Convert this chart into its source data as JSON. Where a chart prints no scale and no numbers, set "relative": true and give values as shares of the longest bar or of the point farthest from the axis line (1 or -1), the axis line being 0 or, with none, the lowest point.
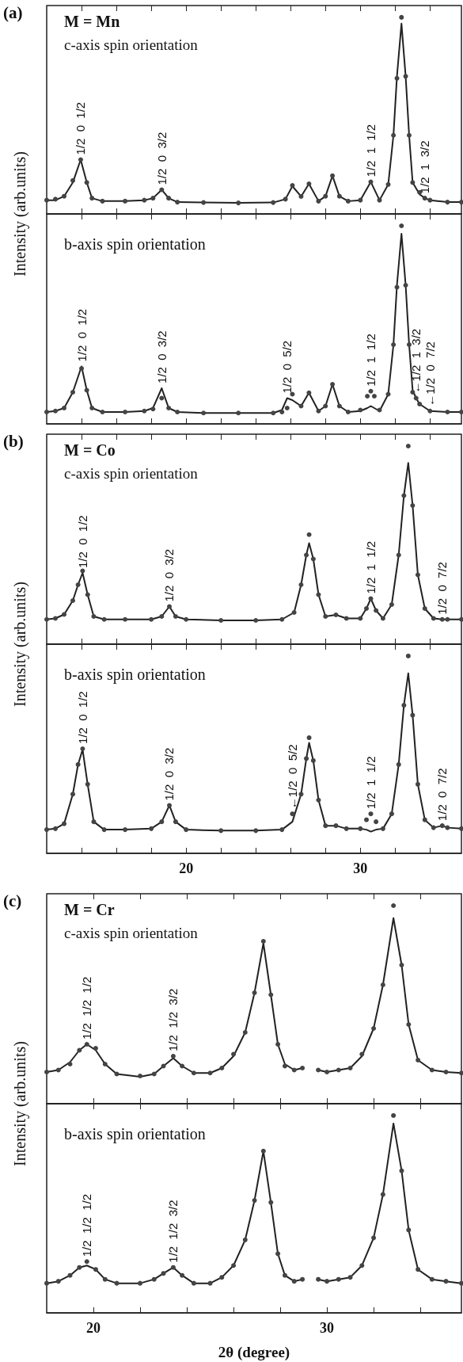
{
  "chart_data": [
    {
      "type": "line",
      "relative": true,
      "title": "M = Mn",
      "subtitle": "c-axis spin orientation",
      "ylabel": "Intensity (arb.units)",
      "line_style": "solid",
      "tick_labels": false,
      "xlim": [
        12,
        35.8
      ],
      "xticks": [
        {
          "value": 14,
          "label": null
        },
        {
          "value": 16,
          "label": null
        },
        {
          "value": 18,
          "label": null
        },
        {
          "value": 20,
          "label": null
        },
        {
          "value": 22,
          "label": null
        },
        {
          "value": 24,
          "label": null
        },
        {
          "value": 26,
          "label": null
        },
        {
          "value": 28,
          "label": null
        },
        {
          "value": 30,
          "label": null
        },
        {
          "value": 32,
          "label": null
        },
        {
          "value": 34,
          "label": null
        }
      ],
      "annotations": [
        "(a)",
        {
          "text": "1/2  0  1/2",
          "x": 13.95,
          "y": 0.276
        },
        {
          "text": "1/2  0  3/2",
          "x": 18.6,
          "y": 0.123
        },
        {
          "text": "1/2  1  1/2",
          "x": 30.6,
          "y": 0.163
        },
        {
          "text": "1/2  1  3/2",
          "x": 33.7,
          "y": 0.08
        }
      ],
      "x": [
        12,
        12.5,
        13,
        13.5,
        13.95,
        14.3,
        14.6,
        15.2,
        16.5,
        17.6,
        18.1,
        18.6,
        19,
        19.5,
        21,
        23,
        25,
        25.7,
        26.1,
        26.6,
        27.05,
        27.6,
        28,
        28.4,
        28.8,
        29.3,
        30,
        30.6,
        31.1,
        31.6,
        31.9,
        32.1,
        32.36,
        32.6,
        32.8,
        33,
        33.4,
        33.7,
        34,
        35,
        35.8
      ],
      "series": [
        {
          "marker": "none",
          "color": "#222222",
          "values": [
            0.07,
            0.07,
            0.09,
            0.16,
            0.276,
            0.16,
            0.08,
            0.065,
            0.065,
            0.07,
            0.08,
            0.123,
            0.08,
            0.06,
            0.058,
            0.056,
            0.058,
            0.075,
            0.141,
            0.089,
            0.153,
            0.065,
            0.09,
            0.194,
            0.09,
            0.065,
            0.07,
            0.163,
            0.07,
            0.15,
            0.4,
            0.7,
            0.968,
            0.7,
            0.4,
            0.16,
            0.1,
            0.08,
            0.07,
            0.06,
            0.06
          ]
        },
        {
          "type": "scatter",
          "marker": "circle",
          "color": "#444444",
          "values": [
            0.07,
            0.075,
            0.09,
            0.17,
            0.276,
            0.16,
            0.08,
            0.065,
            0.065,
            0.07,
            0.08,
            0.123,
            0.08,
            0.06,
            0.058,
            0.056,
            0.058,
            0.075,
            0.145,
            0.089,
            0.153,
            0.065,
            0.09,
            0.194,
            0.09,
            0.065,
            0.07,
            0.163,
            0.07,
            0.15,
            0.4,
            0.69,
            1.0,
            0.7,
            0.4,
            0.16,
            0.11,
            0.08,
            0.07,
            0.06,
            0.06
          ]
        }
      ]
    },
    {
      "type": "line",
      "relative": true,
      "title": "b-axis spin orientation",
      "line_style": "solid",
      "tick_labels": false,
      "xlim": [
        12,
        35.8
      ],
      "xticks": [
        {
          "value": 14,
          "label": null
        },
        {
          "value": 16,
          "label": null
        },
        {
          "value": 18,
          "label": null
        },
        {
          "value": 20,
          "label": null
        },
        {
          "value": 22,
          "label": null
        },
        {
          "value": 24,
          "label": null
        },
        {
          "value": 26,
          "label": null
        },
        {
          "value": 28,
          "label": null
        },
        {
          "value": 30,
          "label": null
        },
        {
          "value": 32,
          "label": null
        },
        {
          "value": 34,
          "label": null
        }
      ],
      "annotations": [
        {
          "text": "1/2  0  1/2",
          "x": 14,
          "y": 0.29
        },
        {
          "text": "1/2  0  3/2",
          "x": 18.6,
          "y": 0.18
        },
        {
          "text": "1/2  0  5/2",
          "x": 25.8,
          "y": 0.13
        },
        {
          "text": "1/2  1  1/2",
          "x": 30.6,
          "y": 0.165
        },
        {
          "text": "←1/2  1  3/2",
          "x": 33.2,
          "y": 0.13
        },
        {
          "text": "←1/2  0  7/2",
          "x": 34.0,
          "y": 0.065
        }
      ],
      "x": [
        12,
        12.5,
        13,
        13.5,
        14,
        14.3,
        14.6,
        15.2,
        16.5,
        17.6,
        18.1,
        18.6,
        19,
        19.5,
        21,
        23,
        25,
        25.5,
        25.8,
        26.1,
        26.6,
        27.05,
        27.6,
        28,
        28.4,
        28.8,
        29.3,
        30,
        30.4,
        30.6,
        30.8,
        31.1,
        31.6,
        31.9,
        32.1,
        32.36,
        32.6,
        32.8,
        33,
        33.2,
        33.4,
        34,
        35,
        35.8
      ],
      "series": [
        {
          "marker": "none",
          "color": "#222222",
          "values": [
            0.06,
            0.065,
            0.08,
            0.16,
            0.29,
            0.17,
            0.08,
            0.06,
            0.06,
            0.065,
            0.08,
            0.18,
            0.08,
            0.06,
            0.055,
            0.055,
            0.055,
            0.07,
            0.13,
            0.12,
            0.09,
            0.157,
            0.065,
            0.09,
            0.2,
            0.09,
            0.06,
            0.065,
            0.08,
            0.09,
            0.08,
            0.065,
            0.15,
            0.4,
            0.7,
            0.96,
            0.7,
            0.4,
            0.17,
            0.13,
            0.1,
            0.065,
            0.06,
            0.06
          ]
        },
        {
          "type": "scatter",
          "marker": "circle",
          "color": "#444444",
          "values": [
            0.06,
            0.065,
            0.08,
            0.16,
            0.28,
            0.17,
            0.08,
            0.06,
            0.06,
            0.065,
            0.075,
            0.13,
            0.08,
            0.06,
            0.055,
            0.055,
            0.055,
            0.06,
            0.08,
            0.15,
            0.09,
            0.157,
            0.065,
            0.09,
            0.2,
            0.09,
            0.06,
            0.07,
            0.14,
            0.165,
            0.14,
            0.07,
            0.15,
            0.4,
            0.69,
            1.0,
            0.7,
            0.4,
            0.16,
            0.13,
            0.1,
            0.065,
            0.06,
            0.06
          ]
        }
      ]
    },
    {
      "type": "line",
      "relative": true,
      "title": "M = Co",
      "subtitle": "c-axis spin orientation",
      "ylabel": "Intensity (arb.units)",
      "line_style": "solid",
      "tick_labels": false,
      "xlim": [
        12,
        35.8
      ],
      "xticks": [
        {
          "value": 14,
          "label": null
        },
        {
          "value": 16,
          "label": null
        },
        {
          "value": 18,
          "label": null
        },
        {
          "value": 20,
          "label": null
        },
        {
          "value": 22,
          "label": null
        },
        {
          "value": 24,
          "label": null
        },
        {
          "value": 26,
          "label": null
        },
        {
          "value": 28,
          "label": null
        },
        {
          "value": 30,
          "label": null
        },
        {
          "value": 32,
          "label": null
        },
        {
          "value": 34,
          "label": null
        }
      ],
      "annotations": [
        "(b)",
        {
          "text": "1/2  0  1/2",
          "x": 14.06,
          "y": 0.36
        },
        {
          "text": "1/2  0  3/2",
          "x": 19.04,
          "y": 0.19
        },
        {
          "text": "1/2  1  1/2",
          "x": 30.6,
          "y": 0.23
        },
        {
          "text": "1/2  0  7/2",
          "x": 34.7,
          "y": 0.125
        }
      ],
      "x": [
        12,
        12.5,
        13,
        13.5,
        13.8,
        14.06,
        14.35,
        14.7,
        15.3,
        16.5,
        18,
        18.6,
        19.04,
        19.4,
        20,
        22,
        24,
        25.5,
        26.2,
        26.6,
        26.9,
        27.06,
        27.3,
        27.6,
        28,
        28.6,
        29.2,
        30,
        30.35,
        30.6,
        30.9,
        31.3,
        31.8,
        32.2,
        32.5,
        32.75,
        33,
        33.3,
        33.7,
        34.2,
        34.7,
        35,
        35.8
      ],
      "series": [
        {
          "marker": "none",
          "color": "#222222",
          "values": [
            0.125,
            0.13,
            0.15,
            0.22,
            0.3,
            0.36,
            0.25,
            0.14,
            0.125,
            0.125,
            0.125,
            0.14,
            0.19,
            0.14,
            0.125,
            0.12,
            0.12,
            0.125,
            0.16,
            0.3,
            0.45,
            0.51,
            0.43,
            0.25,
            0.14,
            0.148,
            0.13,
            0.13,
            0.18,
            0.23,
            0.17,
            0.13,
            0.2,
            0.45,
            0.75,
            0.915,
            0.7,
            0.35,
            0.18,
            0.13,
            0.125,
            0.125,
            0.125
          ]
        },
        {
          "type": "scatter",
          "marker": "circle",
          "color": "#444444",
          "values": [
            0.125,
            0.13,
            0.15,
            0.22,
            0.3,
            0.37,
            0.25,
            0.14,
            0.125,
            0.125,
            0.125,
            0.14,
            0.19,
            0.14,
            0.125,
            0.12,
            0.12,
            0.125,
            0.16,
            0.3,
            0.45,
            0.553,
            0.43,
            0.25,
            0.14,
            0.148,
            0.13,
            0.13,
            0.18,
            0.23,
            0.17,
            0.13,
            0.2,
            0.45,
            0.75,
            1.0,
            0.7,
            0.35,
            0.18,
            0.13,
            0.125,
            0.125,
            0.125
          ]
        }
      ]
    },
    {
      "type": "line",
      "relative": true,
      "title": "b-axis spin orientation",
      "line_style": "solid",
      "tick_labels": "x",
      "xlim": [
        12,
        35.8
      ],
      "xticks": [
        {
          "value": 14,
          "label": null
        },
        {
          "value": 16,
          "label": null
        },
        {
          "value": 18,
          "label": null
        },
        {
          "value": 20,
          "label": "20"
        },
        {
          "value": 22,
          "label": null
        },
        {
          "value": 24,
          "label": null
        },
        {
          "value": 26,
          "label": null
        },
        {
          "value": 28,
          "label": null
        },
        {
          "value": 30,
          "label": "30"
        },
        {
          "value": 32,
          "label": null
        },
        {
          "value": 34,
          "label": null
        }
      ],
      "annotations": [
        {
          "text": "1/2  0  1/2",
          "x": 14.06,
          "y": 0.53
        },
        {
          "text": "1/2  0  3/2",
          "x": 19.04,
          "y": 0.243
        },
        {
          "text": "←1/2  0  5/2",
          "x": 26.1,
          "y": 0.2
        },
        {
          "text": "1/2  1  1/2",
          "x": 30.6,
          "y": 0.2
        },
        {
          "text": "1/2  0  7/2",
          "x": 34.7,
          "y": 0.14
        }
      ],
      "x": [
        12,
        12.5,
        13,
        13.5,
        13.8,
        14.06,
        14.35,
        14.7,
        15.3,
        16.5,
        18,
        18.6,
        19.04,
        19.4,
        20,
        22,
        24,
        25.5,
        26.1,
        26.6,
        26.9,
        27.06,
        27.3,
        27.6,
        28,
        28.6,
        29.2,
        30,
        30.35,
        30.6,
        30.9,
        31.3,
        31.8,
        32.2,
        32.5,
        32.75,
        33,
        33.3,
        33.7,
        34.2,
        34.7,
        35,
        35.8
      ],
      "series": [
        {
          "marker": "none",
          "color": "#222222",
          "values": [
            0.12,
            0.125,
            0.15,
            0.3,
            0.45,
            0.526,
            0.35,
            0.16,
            0.12,
            0.12,
            0.125,
            0.16,
            0.243,
            0.16,
            0.12,
            0.115,
            0.115,
            0.12,
            0.16,
            0.3,
            0.48,
            0.56,
            0.47,
            0.27,
            0.14,
            0.14,
            0.125,
            0.125,
            0.12,
            0.11,
            0.12,
            0.125,
            0.2,
            0.45,
            0.75,
            0.912,
            0.7,
            0.35,
            0.17,
            0.13,
            0.14,
            0.13,
            0.125
          ]
        },
        {
          "type": "scatter",
          "marker": "circle",
          "color": "#444444",
          "values": [
            0.12,
            0.125,
            0.15,
            0.3,
            0.45,
            0.53,
            0.35,
            0.16,
            0.12,
            0.12,
            0.125,
            0.16,
            0.243,
            0.16,
            0.12,
            0.115,
            0.115,
            0.12,
            0.2,
            0.3,
            0.48,
            0.586,
            0.47,
            0.27,
            0.14,
            0.14,
            0.125,
            0.125,
            0.17,
            0.2,
            0.16,
            0.125,
            0.2,
            0.45,
            0.75,
            1.0,
            0.7,
            0.35,
            0.17,
            0.13,
            0.14,
            0.13,
            0.125
          ]
        }
      ]
    },
    {
      "type": "line",
      "relative": true,
      "title": "M = Cr",
      "subtitle": "c-axis spin orientation",
      "ylabel": "Intensity (arb.units)",
      "line_style": "solid",
      "tick_labels": false,
      "xlim": [
        18,
        35.76
      ],
      "xticks": [
        {
          "value": 20,
          "label": null
        },
        {
          "value": 22,
          "label": null
        },
        {
          "value": 24,
          "label": null
        },
        {
          "value": 26,
          "label": null
        },
        {
          "value": 28,
          "label": null
        },
        {
          "value": 30,
          "label": null
        },
        {
          "value": 32,
          "label": null
        },
        {
          "value": 34,
          "label": null
        }
      ],
      "annotations": [
        "(c)",
        {
          "text": "1/2  1/2  1/2",
          "x": 19.72,
          "y": 0.3
        },
        {
          "text": "1/2  1/2  3/2",
          "x": 23.42,
          "y": 0.24
        }
      ],
      "x": [
        18,
        18.5,
        19,
        19.4,
        19.72,
        20.1,
        20.5,
        21,
        22,
        22.6,
        23,
        23.42,
        23.8,
        24.3,
        25,
        25.5,
        26,
        26.5,
        26.9,
        27.28,
        27.6,
        27.9,
        28.2,
        28.6,
        28.95,
        29.3,
        29.63,
        30,
        30.5,
        31,
        31.5,
        32,
        32.4,
        32.85,
        33.2,
        33.5,
        33.9,
        34.5,
        35.1,
        35.76
      ],
      "series": [
        {
          "marker": "none",
          "color": "#222222",
          "values": [
            0.16,
            0.17,
            0.21,
            0.27,
            0.3,
            0.27,
            0.2,
            0.15,
            0.136,
            0.15,
            0.19,
            0.23,
            0.19,
            0.155,
            0.155,
            0.18,
            0.24,
            0.36,
            0.56,
            0.81,
            0.55,
            0.3,
            0.2,
            0.17,
            0.18,
            null,
            0.17,
            0.16,
            0.17,
            0.18,
            0.24,
            0.38,
            0.6,
            0.937,
            0.7,
            0.4,
            0.22,
            0.17,
            0.16,
            0.155
          ]
        },
        {
          "type": "scatter",
          "marker": "circle",
          "color": "#444444",
          "values": [
            0.16,
            0.17,
            0.2,
            0.27,
            0.3,
            0.28,
            0.2,
            0.15,
            0.14,
            0.15,
            0.19,
            0.24,
            0.19,
            0.155,
            0.155,
            0.18,
            0.25,
            0.36,
            0.56,
            0.82,
            0.55,
            0.3,
            0.19,
            0.17,
            0.18,
            null,
            0.17,
            0.16,
            0.17,
            0.18,
            0.25,
            0.38,
            0.6,
            1.0,
            0.7,
            0.4,
            0.22,
            0.17,
            0.16,
            0.155
          ]
        }
      ]
    },
    {
      "type": "line",
      "relative": true,
      "title": "b-axis spin orientation",
      "xlabel": "2θ (degree)",
      "line_style": "solid",
      "tick_labels": "x",
      "xlim": [
        18,
        35.76
      ],
      "xticks": [
        {
          "value": 20,
          "label": "20"
        },
        {
          "value": 22,
          "label": null
        },
        {
          "value": 24,
          "label": null
        },
        {
          "value": 26,
          "label": null
        },
        {
          "value": 28,
          "label": null
        },
        {
          "value": 30,
          "label": "30"
        },
        {
          "value": 32,
          "label": null
        },
        {
          "value": 34,
          "label": null
        }
      ],
      "annotations": [
        {
          "text": "1/2  1/2  1/2",
          "x": 19.72,
          "y": 0.26
        },
        {
          "text": "1/2  1/2  3/2",
          "x": 23.42,
          "y": 0.23
        }
      ],
      "x": [
        18,
        18.5,
        19,
        19.4,
        19.72,
        20.1,
        20.5,
        21,
        22,
        22.6,
        23,
        23.42,
        23.8,
        24.3,
        25,
        25.5,
        26,
        26.5,
        26.9,
        27.28,
        27.6,
        27.9,
        28.2,
        28.6,
        28.95,
        29.3,
        29.63,
        30,
        30.5,
        31,
        31.5,
        32,
        32.4,
        32.85,
        33.2,
        33.5,
        33.9,
        34.5,
        35.1,
        35.76
      ],
      "series": [
        {
          "marker": "none",
          "color": "#222222",
          "values": [
            0.15,
            0.16,
            0.19,
            0.23,
            0.24,
            0.22,
            0.17,
            0.15,
            0.15,
            0.17,
            0.2,
            0.23,
            0.19,
            0.15,
            0.15,
            0.18,
            0.24,
            0.37,
            0.57,
            0.82,
            0.56,
            0.3,
            0.19,
            0.16,
            0.17,
            null,
            0.17,
            0.16,
            0.17,
            0.18,
            0.24,
            0.38,
            0.6,
            0.96,
            0.72,
            0.42,
            0.22,
            0.17,
            0.16,
            0.15
          ]
        },
        {
          "type": "scatter",
          "marker": "circle",
          "color": "#444444",
          "values": [
            0.15,
            0.16,
            0.19,
            0.23,
            0.26,
            0.22,
            0.17,
            0.15,
            0.15,
            0.17,
            0.2,
            0.23,
            0.19,
            0.15,
            0.15,
            0.18,
            0.24,
            0.37,
            0.57,
            0.82,
            0.56,
            0.3,
            0.19,
            0.16,
            0.17,
            null,
            0.17,
            0.16,
            0.17,
            0.18,
            0.24,
            0.38,
            0.6,
            1.0,
            0.72,
            0.42,
            0.22,
            0.17,
            0.16,
            0.15
          ]
        }
      ]
    }
  ]
}
